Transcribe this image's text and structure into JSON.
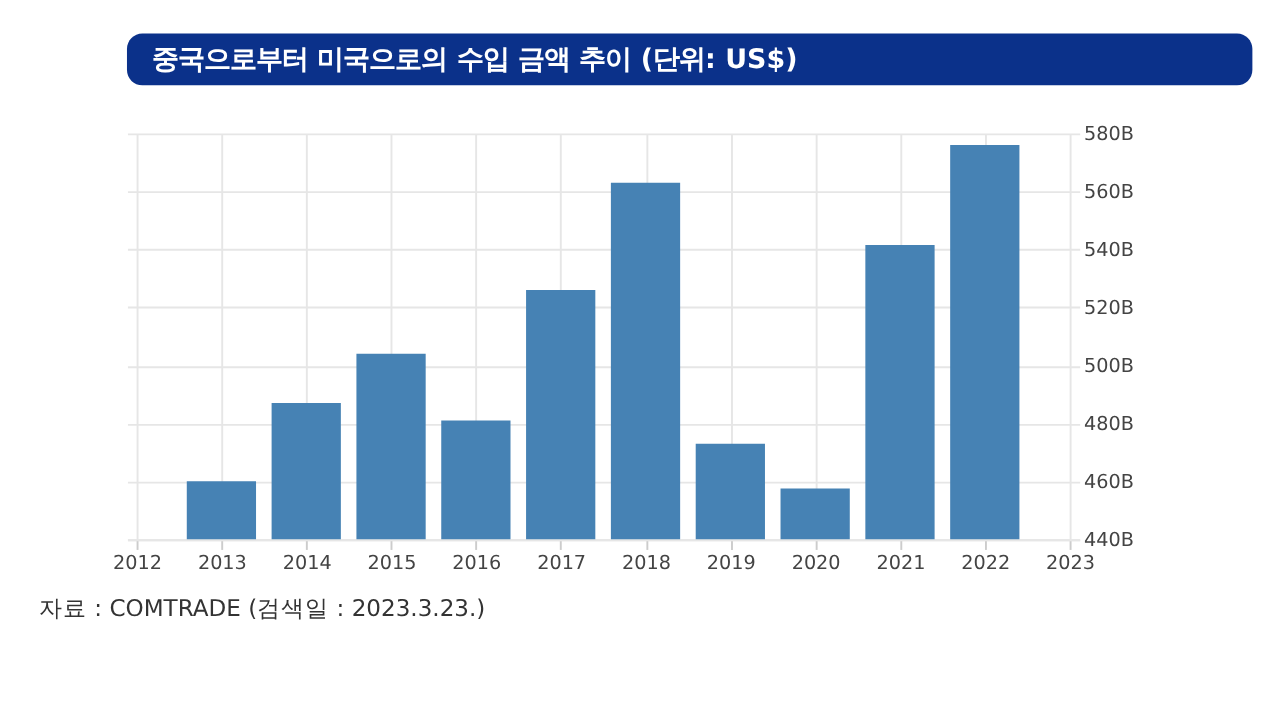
{
  "chart_data": {
    "type": "bar",
    "title": "중국으로부터 미국으로의 수입 금액 추이 (단위: US$)",
    "x": [
      2013,
      2014,
      2015,
      2016,
      2017,
      2018,
      2019,
      2020,
      2021,
      2022
    ],
    "values": [
      460,
      487,
      504,
      481,
      526,
      563,
      473,
      457.5,
      541.5,
      576
    ],
    "color": "#4682b4",
    "xlim": [
      2012,
      2023
    ],
    "xticks": [
      2012,
      2013,
      2014,
      2015,
      2016,
      2017,
      2018,
      2019,
      2020,
      2021,
      2022,
      2023
    ],
    "ylim": [
      440,
      580
    ],
    "yticks": [
      {
        "value": 440,
        "label": "440B"
      },
      {
        "value": 460,
        "label": "460B"
      },
      {
        "value": 480,
        "label": "480B"
      },
      {
        "value": 500,
        "label": "500B"
      },
      {
        "value": 520,
        "label": "520B"
      },
      {
        "value": 540,
        "label": "540B"
      },
      {
        "value": 560,
        "label": "560B"
      },
      {
        "value": 580,
        "label": "580B"
      }
    ],
    "grid": true,
    "annotations": [
      "자료 : COMTRADE (검색일 : 2023.3.23.)"
    ]
  }
}
